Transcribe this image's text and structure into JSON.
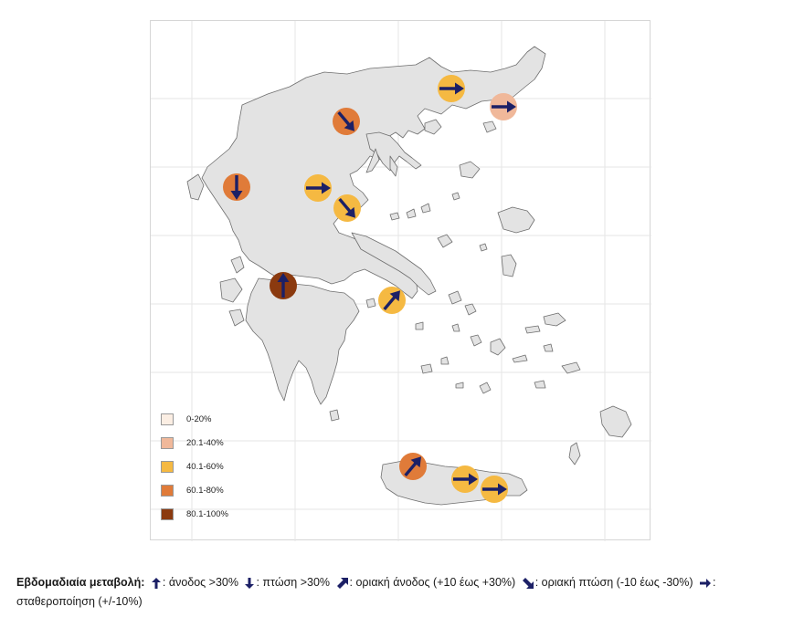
{
  "map": {
    "markers": [
      {
        "id": "ioannina",
        "fill": "#e07b39",
        "direction": "down"
      },
      {
        "id": "larissa",
        "fill": "#f5b942",
        "direction": "right"
      },
      {
        "id": "magnesia",
        "fill": "#f5b942",
        "direction": "down-right"
      },
      {
        "id": "thessaloniki",
        "fill": "#e07b39",
        "direction": "down-right"
      },
      {
        "id": "xanthi",
        "fill": "#f5b942",
        "direction": "right"
      },
      {
        "id": "evros",
        "fill": "#f0b89a",
        "direction": "right"
      },
      {
        "id": "achaia",
        "fill": "#8b3a0f",
        "direction": "up"
      },
      {
        "id": "attica",
        "fill": "#f5b942",
        "direction": "up-right"
      },
      {
        "id": "chania",
        "fill": "#e07b39",
        "direction": "up-right"
      },
      {
        "id": "heraklion",
        "fill": "#f5b942",
        "direction": "right"
      },
      {
        "id": "lasithi",
        "fill": "#f5b942",
        "direction": "right"
      }
    ]
  },
  "legend": {
    "items": [
      {
        "label": "0-20%",
        "color": "#fbeee3"
      },
      {
        "label": "20.1-40%",
        "color": "#f0b89a"
      },
      {
        "label": "40.1-60%",
        "color": "#f5b942"
      },
      {
        "label": "60.1-80%",
        "color": "#e07b39"
      },
      {
        "label": "80.1-100%",
        "color": "#8b3a0f"
      }
    ]
  },
  "caption": {
    "title": "Εβδομαδιαία μεταβολή:",
    "up": ": άνοδος >30%",
    "down": ": πτώση >30%",
    "up_right": ": οριακή άνοδος (+10 έως +30%)",
    "down_right": ": οριακή πτώση  (-10 έως -30%)",
    "right": ":  σταθεροποίηση (+/-10%)"
  },
  "colors": {
    "arrow": "#1c2066",
    "land": "#e3e3e3",
    "coast": "#6e6e6e"
  }
}
